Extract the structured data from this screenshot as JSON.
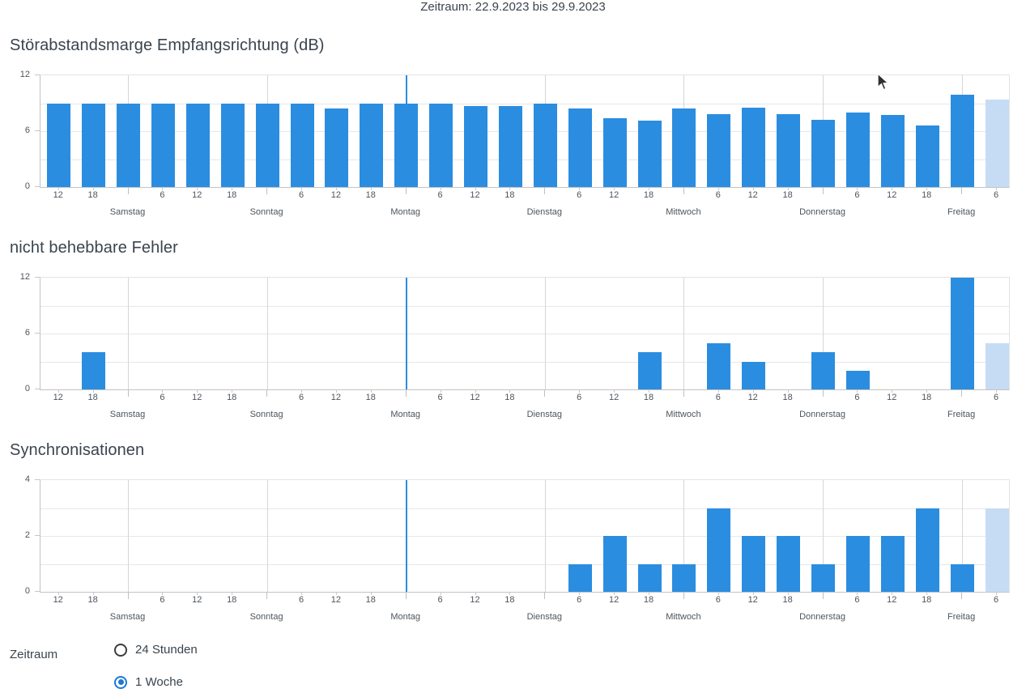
{
  "header": {
    "period_label": "Zeitraum: 22.9.2023 bis 29.9.2023"
  },
  "x_axis": {
    "hour_tick_labels": [
      "12",
      "18",
      "",
      "6",
      "12",
      "18",
      "",
      "6",
      "12",
      "18",
      "",
      "6",
      "12",
      "18",
      "",
      "6",
      "12",
      "18",
      "",
      "6",
      "12",
      "18",
      "",
      "6",
      "12",
      "18",
      "",
      "6"
    ],
    "day_labels": [
      {
        "name": "Samstag",
        "tick_index": 2
      },
      {
        "name": "Sonntag",
        "tick_index": 6
      },
      {
        "name": "Montag",
        "tick_index": 10
      },
      {
        "name": "Dienstag",
        "tick_index": 14
      },
      {
        "name": "Mittwoch",
        "tick_index": 18
      },
      {
        "name": "Donnerstag",
        "tick_index": 22
      },
      {
        "name": "Freitag",
        "tick_index": 26
      }
    ],
    "marker_line_tick_index": 10,
    "current_bar_index": 27
  },
  "chart_data": [
    {
      "type": "bar",
      "title": "Störabstandsmarge Empfangsrichtung (dB)",
      "ylim": [
        0,
        12
      ],
      "ytick_labels": [
        "0",
        "6",
        "12"
      ],
      "grid_step": 3,
      "values": [
        9,
        9,
        9,
        9,
        9,
        9,
        9,
        9,
        8.4,
        9,
        9,
        9,
        8.7,
        8.7,
        9,
        8.4,
        7.4,
        7.1,
        8.4,
        7.8,
        8.5,
        7.8,
        7.2,
        8,
        7.7,
        6.6,
        9.9,
        9.4
      ]
    },
    {
      "type": "bar",
      "title": "nicht behebbare Fehler",
      "ylim": [
        0,
        12
      ],
      "ytick_labels": [
        "0",
        "6",
        "12"
      ],
      "grid_step": 3,
      "values": [
        0,
        4,
        0,
        0,
        0,
        0,
        0,
        0,
        0,
        0,
        0,
        0,
        0,
        0,
        0,
        0,
        0,
        4,
        0,
        5,
        3,
        0,
        4,
        2,
        0,
        0,
        12,
        5
      ]
    },
    {
      "type": "bar",
      "title": "Synchronisationen",
      "ylim": [
        0,
        4
      ],
      "ytick_labels": [
        "0",
        "2",
        "4"
      ],
      "grid_step": 1,
      "values": [
        0,
        0,
        0,
        0,
        0,
        0,
        0,
        0,
        0,
        0,
        0,
        0,
        0,
        0,
        0,
        1,
        2,
        1,
        1,
        3,
        2,
        2,
        1,
        2,
        2,
        3,
        1,
        3
      ]
    }
  ],
  "controls": {
    "label": "Zeitraum",
    "options": [
      {
        "label": "24 Stunden",
        "selected": false
      },
      {
        "label": "1 Woche",
        "selected": true
      }
    ]
  },
  "colors": {
    "bar": "#2b8de0",
    "bar_current": "#c6dcf4",
    "marker_line": "#2b8de0",
    "radio_selected": "#1b79d3"
  }
}
